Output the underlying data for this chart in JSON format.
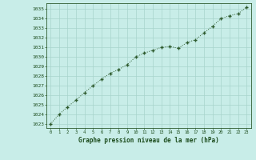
{
  "x": [
    0,
    1,
    2,
    3,
    4,
    5,
    6,
    7,
    8,
    9,
    10,
    11,
    12,
    13,
    14,
    15,
    16,
    17,
    18,
    19,
    20,
    21,
    22,
    23
  ],
  "y": [
    1023.0,
    1024.0,
    1024.8,
    1025.5,
    1026.3,
    1027.0,
    1027.7,
    1028.3,
    1028.7,
    1029.2,
    1030.0,
    1030.4,
    1030.7,
    1031.0,
    1031.1,
    1030.9,
    1031.5,
    1031.8,
    1032.5,
    1033.2,
    1034.0,
    1034.3,
    1034.5,
    1035.2
  ],
  "line_color": "#2d5a2d",
  "marker": "+",
  "bg_color": "#c8ede8",
  "grid_color": "#a8d4cc",
  "ylabel_values": [
    1023,
    1024,
    1025,
    1026,
    1027,
    1028,
    1029,
    1030,
    1031,
    1032,
    1033,
    1034,
    1035
  ],
  "xlabel": "Graphe pression niveau de la mer (hPa)",
  "ylim": [
    1022.6,
    1035.6
  ],
  "xlim": [
    -0.5,
    23.5
  ],
  "title_color": "#1a4a1a",
  "tick_color": "#2d5a2d",
  "border_color": "#2d5a2d"
}
